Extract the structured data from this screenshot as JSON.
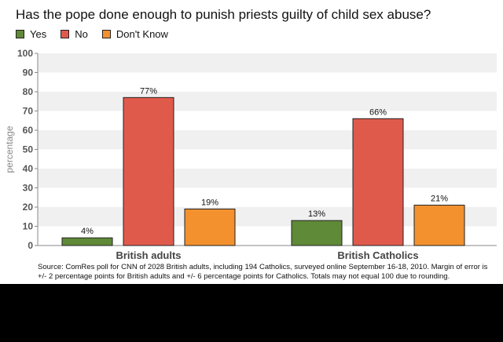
{
  "chart_data": {
    "type": "bar",
    "title": "Has the pope done enough to punish priests guilty of child sex abuse?",
    "ylabel": "percentage",
    "xlabel": "",
    "ylim": [
      0,
      100
    ],
    "yticks": [
      "0",
      "10",
      "20",
      "30",
      "40",
      "50",
      "60",
      "70",
      "80",
      "90",
      "100"
    ],
    "categories": [
      "British adults",
      "British Catholics"
    ],
    "series": [
      {
        "name": "Yes",
        "color": "#5f8a37",
        "values": [
          4,
          13
        ],
        "labels": [
          "4%",
          "13%"
        ]
      },
      {
        "name": "No",
        "color": "#e05a4c",
        "values": [
          77,
          66
        ],
        "labels": [
          "77%",
          "66%"
        ]
      },
      {
        "name": "Don't Know",
        "color": "#f3912f",
        "values": [
          19,
          21
        ],
        "labels": [
          "19%",
          "21%"
        ]
      }
    ],
    "legend_position": "top-left",
    "grid": "alternating horizontal bands",
    "source": "Source: ComRes poll for CNN of 2028 British adults, including 194 Catholics, surveyed online September 16-18, 2010. Margin of error is +/- 2 percentage points for British adults and +/- 6 percentage points for Catholics.  Totals may not equal 100 due to rounding."
  }
}
